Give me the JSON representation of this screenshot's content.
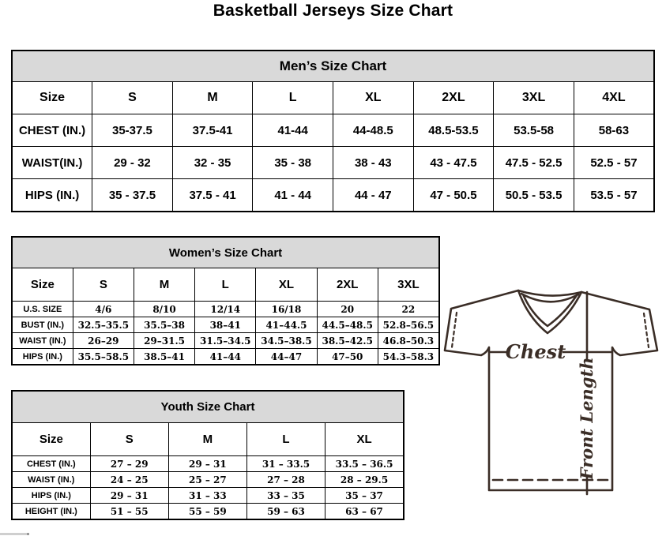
{
  "page": {
    "title": "Basketball Jerseys Size Chart"
  },
  "colors": {
    "table_header_bg": "#d9d9d9",
    "table_border": "#000000",
    "diagram_stroke": "#3a2d26",
    "background": "#ffffff"
  },
  "mens": {
    "title": "Men’s Size Chart",
    "size_label": "Size",
    "sizes": [
      "S",
      "M",
      "L",
      "XL",
      "2XL",
      "3XL",
      "4XL"
    ],
    "rows": [
      {
        "label": "CHEST (IN.)",
        "values": [
          "35-37.5",
          "37.5-41",
          "41-44",
          "44-48.5",
          "48.5-53.5",
          "53.5-58",
          "58-63"
        ]
      },
      {
        "label": "WAIST(IN.)",
        "values": [
          "29 - 32",
          "32 - 35",
          "35 - 38",
          "38 - 43",
          "43 - 47.5",
          "47.5 - 52.5",
          "52.5 - 57"
        ]
      },
      {
        "label": "HIPS (IN.)",
        "values": [
          "35 - 37.5",
          "37.5 - 41",
          "41 - 44",
          "44 - 47",
          "47 - 50.5",
          "50.5 - 53.5",
          "53.5 - 57"
        ]
      }
    ]
  },
  "womens": {
    "title": "Women’s Size Chart",
    "size_label": "Size",
    "sizes": [
      "S",
      "M",
      "L",
      "XL",
      "2XL",
      "3XL"
    ],
    "rows": [
      {
        "label": "U.S. SIZE",
        "values": [
          "4/6",
          "8/10",
          "12/14",
          "16/18",
          "20",
          "22"
        ]
      },
      {
        "label": "BUST (IN.)",
        "values": [
          "32.5–35.5",
          "35.5–38",
          "38–41",
          "41–44.5",
          "44.5–48.5",
          "52.8–56.5"
        ]
      },
      {
        "label": "WAIST (IN.)",
        "values": [
          "26–29",
          "29–31.5",
          "31.5–34.5",
          "34.5–38.5",
          "38.5–42.5",
          "46.8–50.3"
        ]
      },
      {
        "label": "HIPS (IN.)",
        "values": [
          "35.5–58.5",
          "38.5–41",
          "41–44",
          "44–47",
          "47–50",
          "54.3–58.3"
        ]
      }
    ]
  },
  "youth": {
    "title": "Youth Size Chart",
    "size_label": "Size",
    "sizes": [
      "S",
      "M",
      "L",
      "XL"
    ],
    "rows": [
      {
        "label": "CHEST (IN.)",
        "values": [
          "27 – 29",
          "29 – 31",
          "31 – 33.5",
          "33.5 – 36.5"
        ]
      },
      {
        "label": "WAIST (IN.)",
        "values": [
          "24 – 25",
          "25 – 27",
          "27 – 28",
          "28 – 29.5"
        ]
      },
      {
        "label": "HIPS (IN.)",
        "values": [
          "29 – 31",
          "31 – 33",
          "33 – 35",
          "35 – 37"
        ]
      },
      {
        "label": "HEIGHT (IN.)",
        "values": [
          "51 – 55",
          "55 – 59",
          "59 – 63",
          "63 – 67"
        ]
      }
    ]
  },
  "diagram": {
    "chest_label": "Chest",
    "front_length_label": "Front Length"
  }
}
